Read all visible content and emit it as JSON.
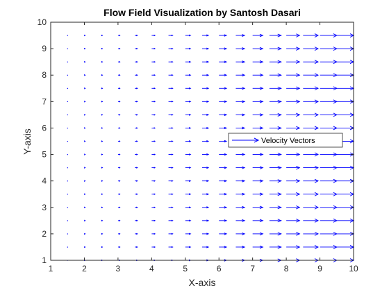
{
  "chart_data": {
    "type": "quiver",
    "title": "Flow Field Visualization by Santosh Dasari",
    "xlabel": "X-axis",
    "ylabel": "Y-axis",
    "xlim": [
      1,
      10
    ],
    "ylim": [
      1,
      10
    ],
    "xticks": [
      1,
      2,
      3,
      4,
      5,
      6,
      7,
      8,
      9,
      10
    ],
    "yticks": [
      1,
      2,
      3,
      4,
      5,
      6,
      7,
      8,
      9,
      10
    ],
    "grid": false,
    "legend": {
      "position": "center-right",
      "entries": [
        "Velocity Vectors"
      ]
    },
    "series": [
      {
        "name": "Velocity Vectors",
        "color": "#0000ff",
        "x": [
          1.5,
          2,
          2.5,
          3,
          3.5,
          4,
          4.5,
          5,
          5.5,
          6,
          6.5,
          7,
          7.5,
          8,
          8.5,
          9,
          9.5,
          10
        ],
        "y": [
          1,
          1.5,
          2,
          2.5,
          3,
          3.5,
          4,
          4.5,
          5,
          5.5,
          6,
          6.5,
          7,
          7.5,
          8,
          8.5,
          9,
          9.5
        ],
        "u_rule": "u = x^2 (scaled for display), v = 0",
        "v": 0
      }
    ]
  }
}
